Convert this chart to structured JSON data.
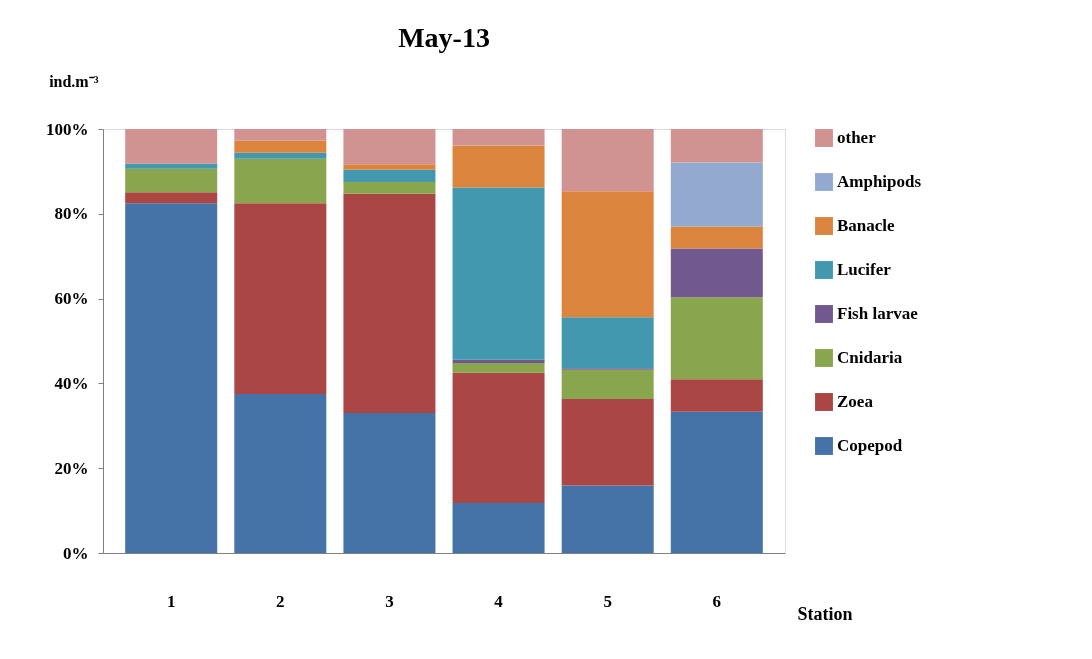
{
  "chart_data": {
    "type": "bar",
    "title": "May-13",
    "xlabel": "Station",
    "ylabel": "ind.m⁻³",
    "categories": [
      "1",
      "2",
      "3",
      "4",
      "5",
      "6"
    ],
    "stacked": true,
    "ylim": [
      0,
      100
    ],
    "yticks": [
      {
        "value": 0,
        "label": "0%"
      },
      {
        "value": 20,
        "label": "20%"
      },
      {
        "value": 40,
        "label": "40%"
      },
      {
        "value": 60,
        "label": "60%"
      },
      {
        "value": 80,
        "label": "80%"
      },
      {
        "value": 100,
        "label": "100%"
      }
    ],
    "grid": false,
    "legend": "right",
    "series": [
      {
        "name": "Copepod",
        "color": "#4572a7",
        "values": [
          82.5,
          37.5,
          33.0,
          11.8,
          15.9,
          33.3
        ]
      },
      {
        "name": "Zoea",
        "color": "#aa4643",
        "values": [
          2.6,
          45.0,
          51.7,
          30.7,
          20.4,
          7.7
        ]
      },
      {
        "name": "Cnidaria",
        "color": "#89a54e",
        "values": [
          5.5,
          10.5,
          2.8,
          2.3,
          6.9,
          19.3
        ]
      },
      {
        "name": "Fish larvae",
        "color": "#71588f",
        "values": [
          0,
          0,
          0,
          0.8,
          0.4,
          11.5
        ]
      },
      {
        "name": "Lucifer",
        "color": "#4198af",
        "values": [
          1.2,
          1.4,
          2.9,
          40.6,
          12.0,
          0
        ]
      },
      {
        "name": "Banacle",
        "color": "#db843d",
        "values": [
          0,
          2.8,
          1.3,
          9.9,
          29.7,
          5.2
        ]
      },
      {
        "name": "Amphipods",
        "color": "#93a9cf",
        "values": [
          0,
          0,
          0,
          0,
          0,
          15.1
        ]
      },
      {
        "name": "other",
        "color": "#d19392",
        "values": [
          8.2,
          2.8,
          8.3,
          3.9,
          14.7,
          7.9
        ]
      }
    ]
  }
}
